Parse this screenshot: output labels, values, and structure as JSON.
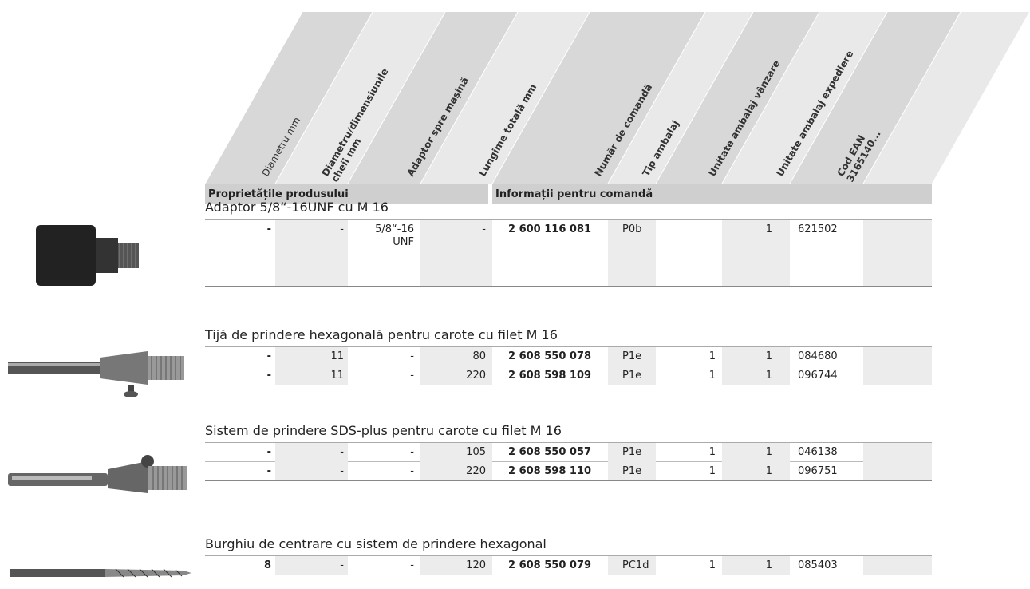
{
  "header": {
    "columns": [
      [
        "Diametru mm"
      ],
      [
        "Diametru/dimensiunile",
        "cheii mm"
      ],
      [
        "Adaptor spre mașină"
      ],
      [
        "Lungime totală mm"
      ],
      [
        "Număr de comandă"
      ],
      [
        "Tip ambalaj"
      ],
      [
        "Unitate ambalaj vânzare"
      ],
      [
        "Unitate ambalaj expediere"
      ],
      [
        "Cod EAN",
        "3165140..."
      ]
    ],
    "sections": [
      "Proprietățile produsului",
      "Informații pentru comandă"
    ]
  },
  "groups": [
    {
      "title": "Adaptor 5/8“-16UNF cu M 16",
      "rows": [
        [
          "-",
          "-",
          "5/8“-16 UNF",
          "-",
          "2 600 116 081",
          "P0b",
          "",
          "1",
          "621502"
        ]
      ]
    },
    {
      "title": "Tijă de prindere hexagonală pentru carote cu filet M 16",
      "rows": [
        [
          "-",
          "11",
          "-",
          "80",
          "2 608 550 078",
          "P1e",
          "1",
          "1",
          "084680"
        ],
        [
          "-",
          "11",
          "-",
          "220",
          "2 608 598 109",
          "P1e",
          "1",
          "1",
          "096744"
        ]
      ]
    },
    {
      "title": "Sistem de prindere SDS-plus pentru carote cu filet M 16",
      "rows": [
        [
          "-",
          "-",
          "-",
          "105",
          "2 608 550 057",
          "P1e",
          "1",
          "1",
          "046138"
        ],
        [
          "-",
          "-",
          "-",
          "220",
          "2 608 598 110",
          "P1e",
          "1",
          "1",
          "096751"
        ]
      ]
    },
    {
      "title": "Burghiu de centrare cu sistem de prindere hexagonal",
      "rows": [
        [
          "8",
          "-",
          "-",
          "120",
          "2 608 550 079",
          "PC1d",
          "1",
          "1",
          "085403"
        ]
      ]
    }
  ]
}
